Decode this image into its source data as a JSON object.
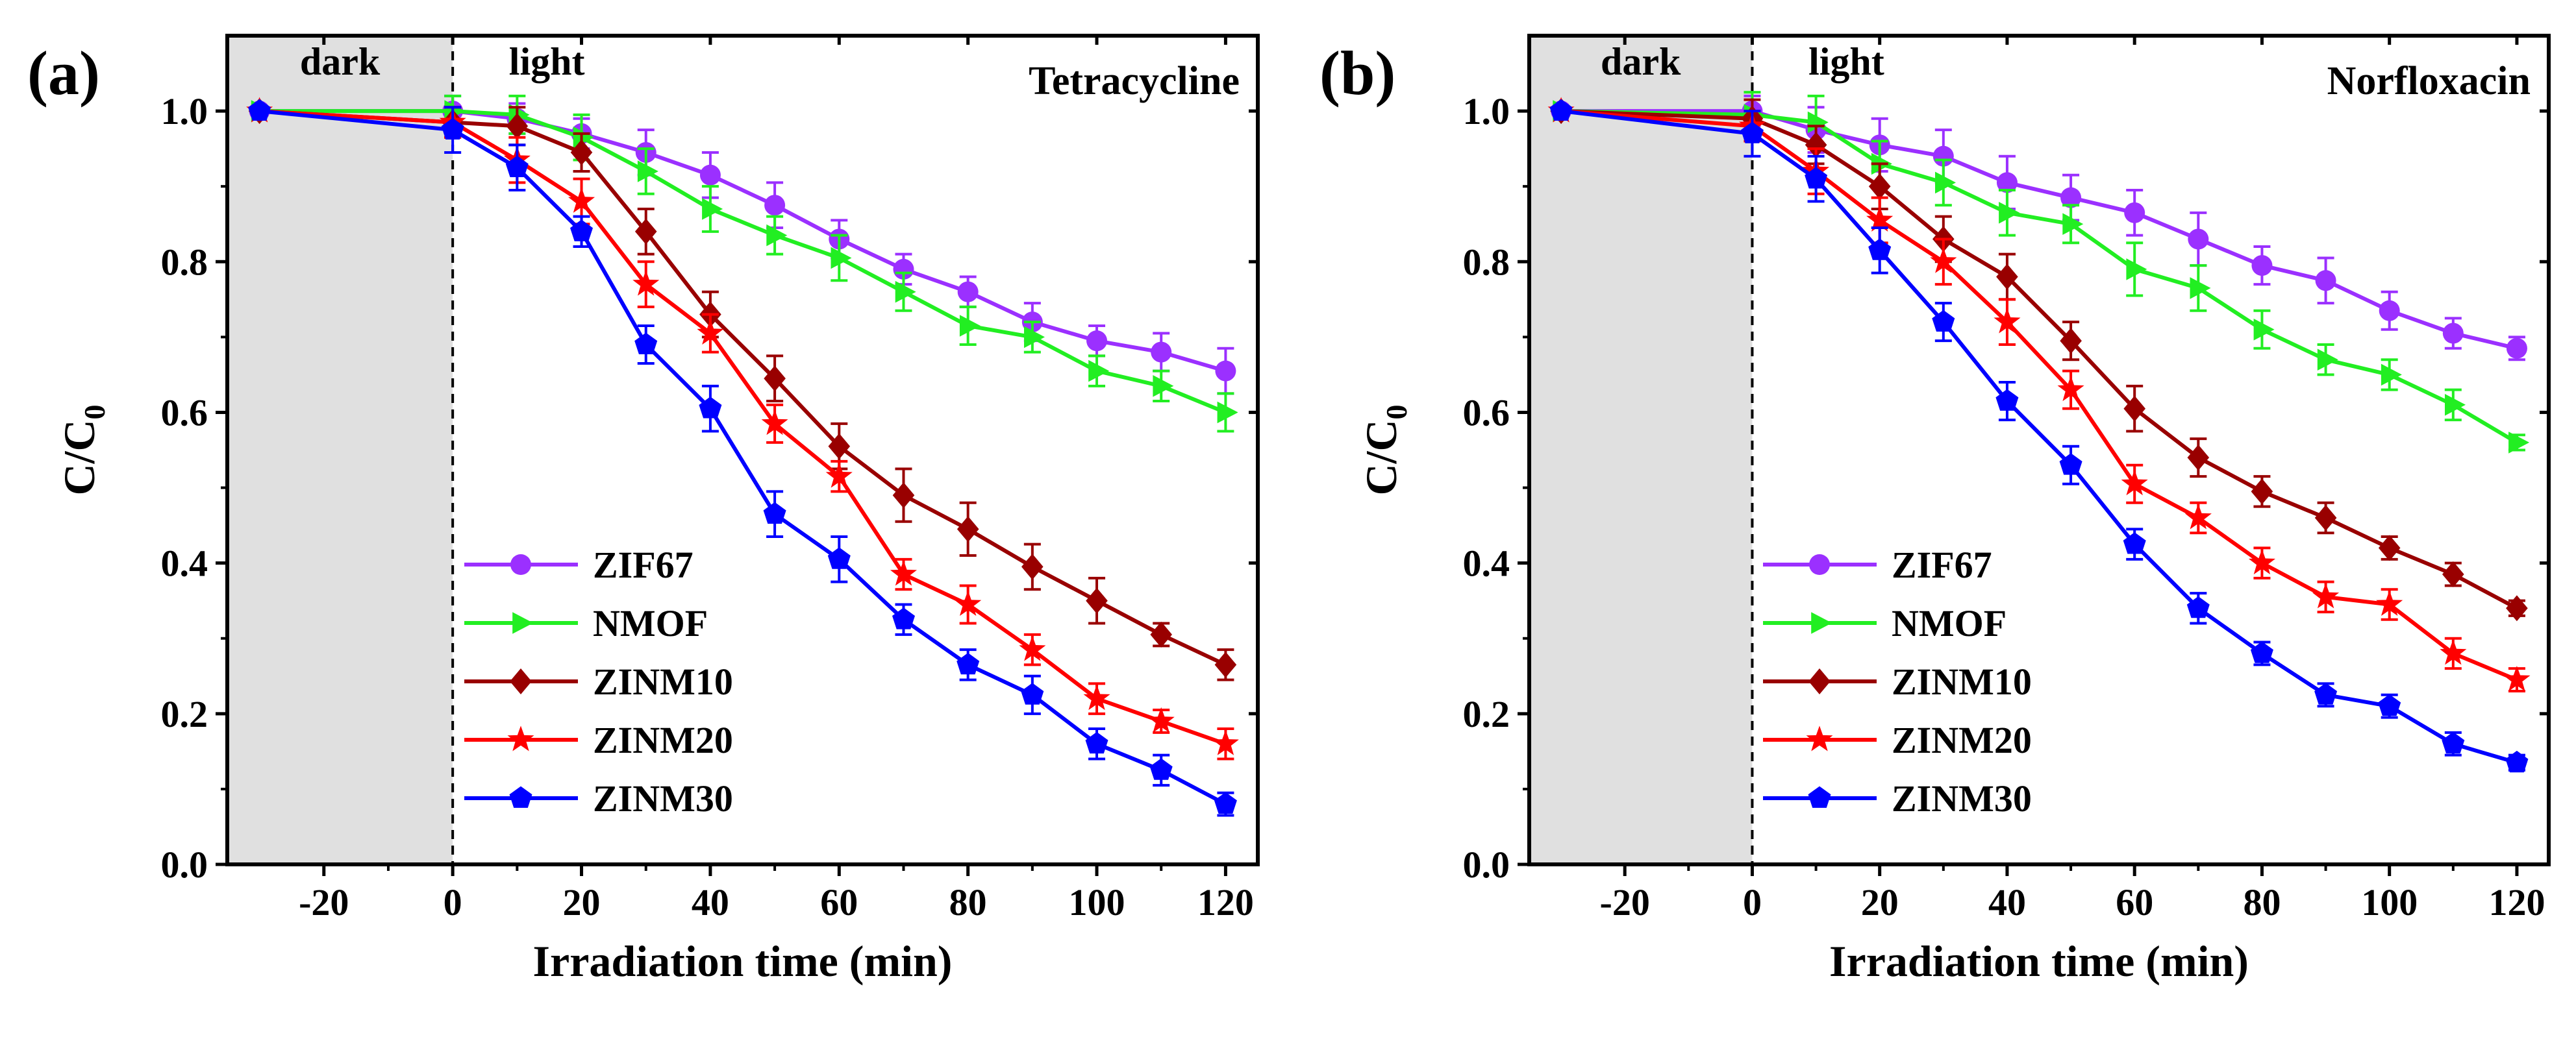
{
  "colors": {
    "ZIF67": "#9b30ff",
    "NMOF": "#22ee22",
    "ZINM10": "#990000",
    "ZINM20": "#ff0000",
    "ZINM30": "#0000ff",
    "dark_region": "#e0e0e0"
  },
  "chart_data": [
    {
      "type": "line",
      "panel_label": "(a)",
      "title": "Tetracycline",
      "xlabel": "Irradiation time (min)",
      "ylabel": "C/C0",
      "ylabel_main": "C/C",
      "ylabel_sub": "0",
      "xlim": [
        -35,
        125
      ],
      "ylim": [
        0,
        1.1
      ],
      "xticks": [
        -20,
        0,
        20,
        40,
        60,
        80,
        100,
        120
      ],
      "yticks": [
        0.0,
        0.2,
        0.4,
        0.6,
        0.8,
        1.0
      ],
      "xtick_labels": [
        "-20",
        "0",
        "20",
        "40",
        "60",
        "80",
        "100",
        "120"
      ],
      "ytick_labels": [
        "0.0",
        "0.2",
        "0.4",
        "0.6",
        "0.8",
        "1.0"
      ],
      "region_labels": {
        "dark": "dark",
        "light": "light"
      },
      "dark_region": [
        -35,
        0
      ],
      "legend_position": "bottom-left",
      "x": [
        -30,
        0,
        10,
        20,
        30,
        40,
        50,
        60,
        70,
        80,
        90,
        100,
        110,
        120
      ],
      "series": [
        {
          "name": "ZIF67",
          "marker": "circle",
          "values": [
            1.0,
            1.0,
            0.99,
            0.97,
            0.945,
            0.915,
            0.875,
            0.83,
            0.79,
            0.76,
            0.72,
            0.695,
            0.68,
            0.655
          ],
          "errors": [
            0.005,
            0.02,
            0.02,
            0.02,
            0.03,
            0.03,
            0.03,
            0.025,
            0.02,
            0.02,
            0.025,
            0.02,
            0.025,
            0.03
          ]
        },
        {
          "name": "NMOF",
          "marker": "triangle-right",
          "values": [
            1.0,
            1.0,
            0.995,
            0.965,
            0.92,
            0.87,
            0.835,
            0.805,
            0.76,
            0.715,
            0.7,
            0.655,
            0.635,
            0.6
          ],
          "errors": [
            0.005,
            0.02,
            0.025,
            0.03,
            0.03,
            0.03,
            0.025,
            0.03,
            0.025,
            0.025,
            0.02,
            0.02,
            0.02,
            0.025
          ]
        },
        {
          "name": "ZINM10",
          "marker": "diamond",
          "values": [
            1.0,
            0.985,
            0.98,
            0.945,
            0.84,
            0.73,
            0.645,
            0.555,
            0.49,
            0.445,
            0.395,
            0.35,
            0.305,
            0.265
          ],
          "errors": [
            0.005,
            0.02,
            0.025,
            0.025,
            0.03,
            0.03,
            0.03,
            0.03,
            0.035,
            0.035,
            0.03,
            0.03,
            0.015,
            0.02
          ]
        },
        {
          "name": "ZINM20",
          "marker": "star",
          "values": [
            1.0,
            0.985,
            0.935,
            0.88,
            0.77,
            0.705,
            0.585,
            0.515,
            0.385,
            0.345,
            0.285,
            0.22,
            0.19,
            0.16
          ],
          "errors": [
            0.005,
            0.02,
            0.03,
            0.03,
            0.03,
            0.025,
            0.025,
            0.02,
            0.02,
            0.025,
            0.02,
            0.02,
            0.015,
            0.02
          ]
        },
        {
          "name": "ZINM30",
          "marker": "pentagon",
          "values": [
            1.0,
            0.975,
            0.925,
            0.84,
            0.69,
            0.605,
            0.465,
            0.405,
            0.325,
            0.265,
            0.225,
            0.16,
            0.125,
            0.08
          ],
          "errors": [
            0.005,
            0.03,
            0.03,
            0.02,
            0.025,
            0.03,
            0.03,
            0.03,
            0.02,
            0.02,
            0.025,
            0.02,
            0.02,
            0.015
          ]
        }
      ]
    },
    {
      "type": "line",
      "panel_label": "(b)",
      "title": "Norfloxacin",
      "xlabel": "Irradiation time (min)",
      "ylabel": "C/C0",
      "ylabel_main": "C/C",
      "ylabel_sub": "0",
      "xlim": [
        -35,
        125
      ],
      "ylim": [
        0,
        1.1
      ],
      "xticks": [
        -20,
        0,
        20,
        40,
        60,
        80,
        100,
        120
      ],
      "yticks": [
        0.0,
        0.2,
        0.4,
        0.6,
        0.8,
        1.0
      ],
      "xtick_labels": [
        "-20",
        "0",
        "20",
        "40",
        "60",
        "80",
        "100",
        "120"
      ],
      "ytick_labels": [
        "0.0",
        "0.2",
        "0.4",
        "0.6",
        "0.8",
        "1.0"
      ],
      "region_labels": {
        "dark": "dark",
        "light": "light"
      },
      "dark_region": [
        -35,
        0
      ],
      "legend_position": "bottom-left",
      "x": [
        -30,
        0,
        10,
        20,
        30,
        40,
        50,
        60,
        70,
        80,
        90,
        100,
        110,
        120
      ],
      "series": [
        {
          "name": "ZIF67",
          "marker": "circle",
          "values": [
            1.0,
            1.0,
            0.975,
            0.955,
            0.94,
            0.905,
            0.885,
            0.865,
            0.83,
            0.795,
            0.775,
            0.735,
            0.705,
            0.685
          ],
          "errors": [
            0.005,
            0.02,
            0.03,
            0.035,
            0.035,
            0.035,
            0.03,
            0.03,
            0.035,
            0.025,
            0.03,
            0.025,
            0.02,
            0.015
          ]
        },
        {
          "name": "NMOF",
          "marker": "triangle-right",
          "values": [
            1.0,
            0.995,
            0.985,
            0.93,
            0.905,
            0.865,
            0.85,
            0.79,
            0.765,
            0.71,
            0.67,
            0.65,
            0.61,
            0.56
          ],
          "errors": [
            0.005,
            0.03,
            0.035,
            0.03,
            0.03,
            0.03,
            0.025,
            0.035,
            0.03,
            0.025,
            0.02,
            0.02,
            0.02,
            0.01
          ]
        },
        {
          "name": "ZINM10",
          "marker": "diamond",
          "values": [
            1.0,
            0.99,
            0.955,
            0.9,
            0.83,
            0.78,
            0.695,
            0.605,
            0.54,
            0.495,
            0.46,
            0.42,
            0.385,
            0.34
          ],
          "errors": [
            0.005,
            0.025,
            0.025,
            0.03,
            0.03,
            0.03,
            0.025,
            0.03,
            0.025,
            0.02,
            0.02,
            0.015,
            0.015,
            0.01
          ]
        },
        {
          "name": "ZINM20",
          "marker": "star",
          "values": [
            1.0,
            0.98,
            0.92,
            0.855,
            0.8,
            0.72,
            0.63,
            0.505,
            0.46,
            0.4,
            0.355,
            0.345,
            0.28,
            0.245
          ],
          "errors": [
            0.005,
            0.02,
            0.03,
            0.03,
            0.03,
            0.03,
            0.025,
            0.025,
            0.02,
            0.02,
            0.02,
            0.02,
            0.02,
            0.015
          ]
        },
        {
          "name": "ZINM30",
          "marker": "pentagon",
          "values": [
            1.0,
            0.97,
            0.91,
            0.815,
            0.72,
            0.615,
            0.53,
            0.425,
            0.34,
            0.28,
            0.225,
            0.21,
            0.16,
            0.135
          ],
          "errors": [
            0.005,
            0.03,
            0.03,
            0.03,
            0.025,
            0.025,
            0.025,
            0.02,
            0.02,
            0.015,
            0.015,
            0.015,
            0.015,
            0.01
          ]
        }
      ]
    }
  ]
}
